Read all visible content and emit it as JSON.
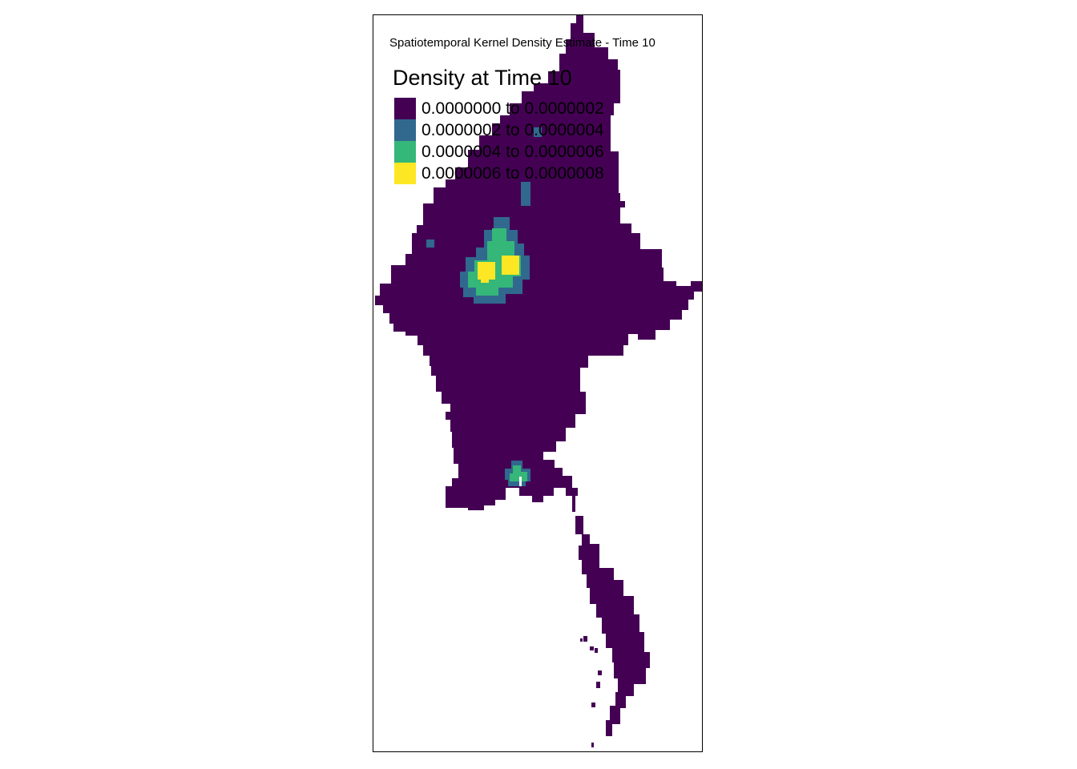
{
  "map": {
    "title": "Spatiotemporal Kernel Density Estimate - Time 10"
  },
  "legend": {
    "title": "Density at Time 10",
    "items": [
      {
        "label": "0.0000000 to 0.0000002",
        "color": "#440154"
      },
      {
        "label": "0.0000002 to 0.0000004",
        "color": "#31688e"
      },
      {
        "label": "0.0000004 to 0.0000006",
        "color": "#35b779"
      },
      {
        "label": "0.0000006 to 0.0000008",
        "color": "#fde725"
      }
    ]
  }
}
